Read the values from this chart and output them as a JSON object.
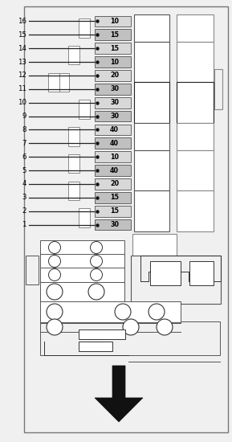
{
  "fuse_rows": [
    {
      "num": 16,
      "val": 10
    },
    {
      "num": 15,
      "val": 15
    },
    {
      "num": 14,
      "val": 15
    },
    {
      "num": 13,
      "val": 10
    },
    {
      "num": 12,
      "val": 20
    },
    {
      "num": 11,
      "val": 30
    },
    {
      "num": 10,
      "val": 30
    },
    {
      "num": 9,
      "val": 30
    },
    {
      "num": 8,
      "val": 40
    },
    {
      "num": 7,
      "val": 40
    },
    {
      "num": 6,
      "val": 10
    },
    {
      "num": 5,
      "val": 40
    },
    {
      "num": 4,
      "val": 20
    },
    {
      "num": 3,
      "val": 15
    },
    {
      "num": 2,
      "val": 15
    },
    {
      "num": 1,
      "val": 30
    }
  ],
  "bg_color": "#f0f0f0",
  "outer_edge": "#888888",
  "fuse_fill_dark": "#c0c0c0",
  "fuse_fill_light": "#d8d8d8",
  "line_color": "#222222",
  "box_edge": "#555555",
  "white": "#ffffff"
}
